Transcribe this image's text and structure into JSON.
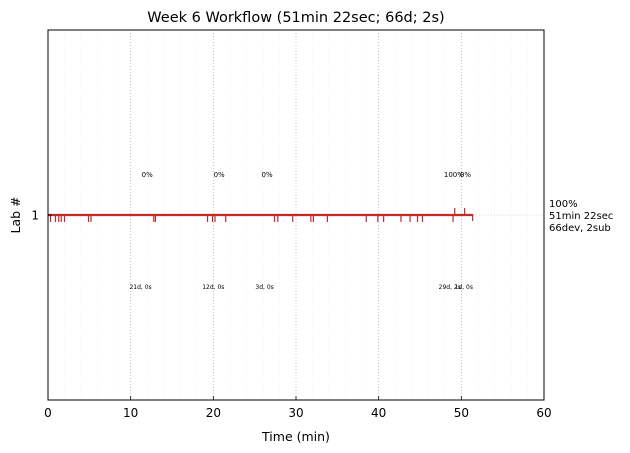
{
  "chart_data": {
    "type": "line",
    "title": "Week 6 Workflow (51min 22sec; 66d; 2s)",
    "xlabel": "Time (min)",
    "ylabel": "Lab #",
    "xlim": [
      0,
      60
    ],
    "ylim": [
      0,
      2
    ],
    "x_ticks": [
      0,
      10,
      20,
      30,
      40,
      50,
      60
    ],
    "y_ticks": [
      1
    ],
    "grid": "major dotted vertical, minor faint vertical",
    "series": [
      {
        "color": "#c62828",
        "y": 1,
        "x_start": 0,
        "x_end": 51.37,
        "down_ticks_x": [
          0.3,
          0.9,
          1.3,
          1.6,
          2.0,
          4.9,
          5.2,
          12.8,
          13.0,
          19.3,
          19.9,
          20.2,
          21.5,
          27.4,
          27.8,
          29.6,
          31.8,
          32.1,
          33.8,
          38.5,
          39.9,
          40.6,
          42.7,
          43.8,
          44.7,
          45.3,
          49.0
        ],
        "up_ticks_x": [
          49.2,
          50.4
        ],
        "percent_labels": [
          {
            "x": 12.0,
            "text": "0%"
          },
          {
            "x": 20.7,
            "text": "0%"
          },
          {
            "x": 26.5,
            "text": "0%"
          },
          {
            "x": 49.1,
            "text": "100%"
          },
          {
            "x": 50.5,
            "text": "0%"
          }
        ],
        "interval_labels": [
          {
            "x": 11.2,
            "text": "21d, 0s"
          },
          {
            "x": 20.0,
            "text": "12d, 0s"
          },
          {
            "x": 26.2,
            "text": "3d, 0s"
          },
          {
            "x": 48.6,
            "text": "29d, 2s"
          },
          {
            "x": 50.3,
            "text": "1d, 0s"
          }
        ]
      }
    ],
    "right_annotation": [
      "100%",
      "51min 22sec",
      "66dev, 2sub"
    ],
    "colors": {
      "series": "#c62828",
      "grid_major": "#b0b0b0",
      "grid_minor": "#ececec",
      "axis": "#000000"
    }
  }
}
